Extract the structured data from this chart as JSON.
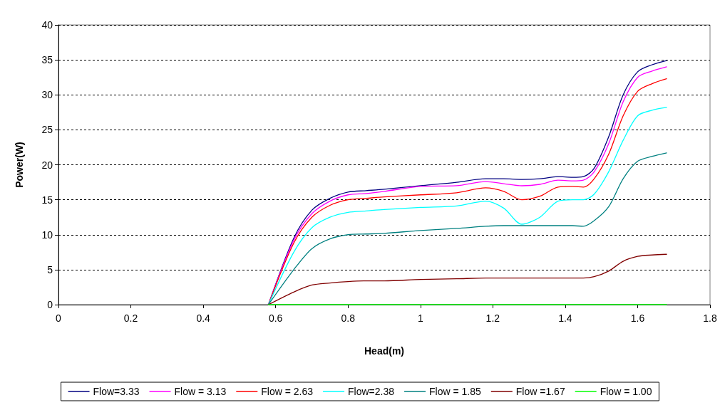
{
  "chart_data": {
    "type": "line",
    "xlabel": "Head(m)",
    "ylabel": "Power(W)",
    "x": [
      0.58,
      0.65,
      0.7,
      0.75,
      0.8,
      0.85,
      0.9,
      1.0,
      1.1,
      1.18,
      1.23,
      1.28,
      1.33,
      1.38,
      1.42,
      1.45,
      1.48,
      1.52,
      1.56,
      1.6,
      1.64,
      1.68
    ],
    "series": [
      {
        "name": "Flow=3.33",
        "color": "#000080",
        "values": [
          0,
          9.5,
          13.5,
          15.2,
          16.1,
          16.3,
          16.5,
          17,
          17.5,
          18,
          18,
          17.9,
          18,
          18.3,
          18.2,
          18.3,
          19.5,
          24,
          30,
          33.3,
          34.3,
          34.9
        ]
      },
      {
        "name": "Flow = 3.13",
        "color": "#ff00ff",
        "values": [
          0,
          9.2,
          13,
          14.8,
          15.7,
          15.9,
          16.2,
          16.9,
          17,
          17.6,
          17.3,
          17,
          17.2,
          17.8,
          17.7,
          17.8,
          19,
          23,
          29,
          32.5,
          33.4,
          34
        ]
      },
      {
        "name": "Flow = 2.63",
        "color": "#ff0000",
        "values": [
          0,
          8.8,
          12.5,
          14.2,
          15,
          15.2,
          15.4,
          15.7,
          16,
          16.7,
          16.2,
          15,
          15.5,
          16.8,
          16.9,
          16.8,
          18,
          21.5,
          27,
          30.5,
          31.6,
          32.3
        ]
      },
      {
        "name": "Flow=2.38",
        "color": "#00ffff",
        "values": [
          0,
          7.5,
          11,
          12.5,
          13.2,
          13.4,
          13.6,
          13.9,
          14.1,
          14.8,
          13.8,
          11.5,
          12.5,
          14.8,
          15,
          15,
          15.8,
          19,
          23.5,
          27,
          27.8,
          28.2
        ]
      },
      {
        "name": "Flow = 1.85",
        "color": "#008080",
        "values": [
          0,
          5,
          8,
          9.4,
          10,
          10.1,
          10.2,
          10.6,
          10.9,
          11.2,
          11.3,
          11.3,
          11.3,
          11.3,
          11.3,
          11.2,
          12,
          14,
          18,
          20.5,
          21.2,
          21.7
        ]
      },
      {
        "name": "Flow =1.67",
        "color": "#800000",
        "values": [
          0,
          1.8,
          2.8,
          3.1,
          3.3,
          3.4,
          3.4,
          3.6,
          3.7,
          3.8,
          3.8,
          3.8,
          3.8,
          3.8,
          3.8,
          3.8,
          4.0,
          4.8,
          6.2,
          6.9,
          7.1,
          7.2
        ]
      },
      {
        "name": "Flow = 1.00",
        "color": "#00ff00",
        "values": [
          0,
          0,
          0,
          0,
          0,
          0,
          0,
          0,
          0,
          0,
          0,
          0,
          0,
          0,
          0,
          0,
          0,
          0,
          0,
          0,
          0,
          0
        ]
      }
    ],
    "xlim": [
      0,
      1.8
    ],
    "xticks": [
      0,
      0.2,
      0.4,
      0.6,
      0.8,
      1,
      1.2,
      1.4,
      1.6,
      1.8
    ],
    "ylim": [
      0,
      40
    ],
    "yticks": [
      0,
      5,
      10,
      15,
      20,
      25,
      30,
      35,
      40
    ],
    "grid": "y",
    "legend": "bottom",
    "marker": "none",
    "line_style": "solid"
  }
}
